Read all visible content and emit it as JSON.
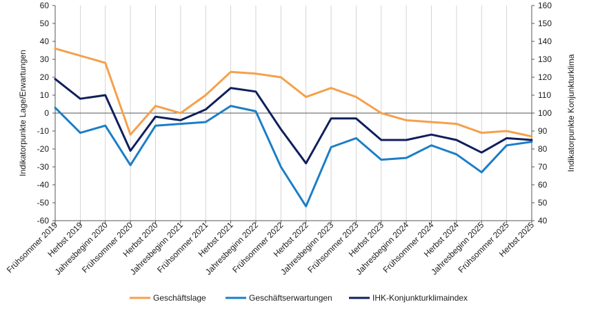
{
  "chart_data": {
    "type": "line",
    "title": "",
    "categories": [
      "Frühsommer 2019",
      "Herbst 2019",
      "Jahresbeginn 2020",
      "Frühsommer 2020",
      "Herbst 2020",
      "Jahresbeginn 2021",
      "Frühsommer 2021",
      "Herbst 2021",
      "Jahresbeginn 2022",
      "Frühsommer 2022",
      "Herbst 2022",
      "Jahresbeginn 2023",
      "Frühsommer 2023",
      "Herbst 2023",
      "Jahresbeginn 2024",
      "Frühsommer 2024",
      "Herbst 2024",
      "Jahresbeginn 2025",
      "Frühsommer 2025",
      "Herbst 2025"
    ],
    "ylabel_left": "Indikatorpunkte Lage/Erwartungen",
    "ylabel_right": "Indikatorpunkte Konjunkturklima",
    "ylim_left": [
      -60,
      60
    ],
    "ylim_right": [
      40,
      160
    ],
    "yticks_left": [
      "60",
      "50",
      "40",
      "30",
      "20",
      "10",
      "0",
      "-10",
      "-20",
      "-30",
      "-40",
      "-50",
      "-60"
    ],
    "yticks_right": [
      "160",
      "150",
      "140",
      "130",
      "120",
      "110",
      "100",
      "90",
      "80",
      "70",
      "60",
      "50",
      "40"
    ],
    "zero_line_value": 0,
    "legend_position": "bottom",
    "series": [
      {
        "name": "Geschäftslage",
        "axis": "left",
        "color": "#F5A04A",
        "values": [
          36,
          32,
          28,
          -12,
          4,
          0,
          10,
          23,
          22,
          20,
          9,
          14,
          9,
          0,
          -4,
          -5,
          -6,
          -11,
          -10,
          -13
        ]
      },
      {
        "name": "Geschäftserwartungen",
        "axis": "left",
        "color": "#1B7EC6",
        "values": [
          3,
          -11,
          -7,
          -29,
          -7,
          -6,
          -5,
          4,
          1,
          -30,
          -52,
          -19,
          -14,
          -26,
          -25,
          -18,
          -23,
          -33,
          -18,
          -16
        ]
      },
      {
        "name": "IHK-Konjunkturklimaindex",
        "axis": "right",
        "color": "#0F1F5C",
        "values": [
          119,
          108,
          110,
          79,
          98,
          96,
          102,
          114,
          112,
          91,
          72,
          97,
          97,
          85,
          85,
          88,
          85,
          78,
          86,
          85
        ]
      }
    ]
  }
}
